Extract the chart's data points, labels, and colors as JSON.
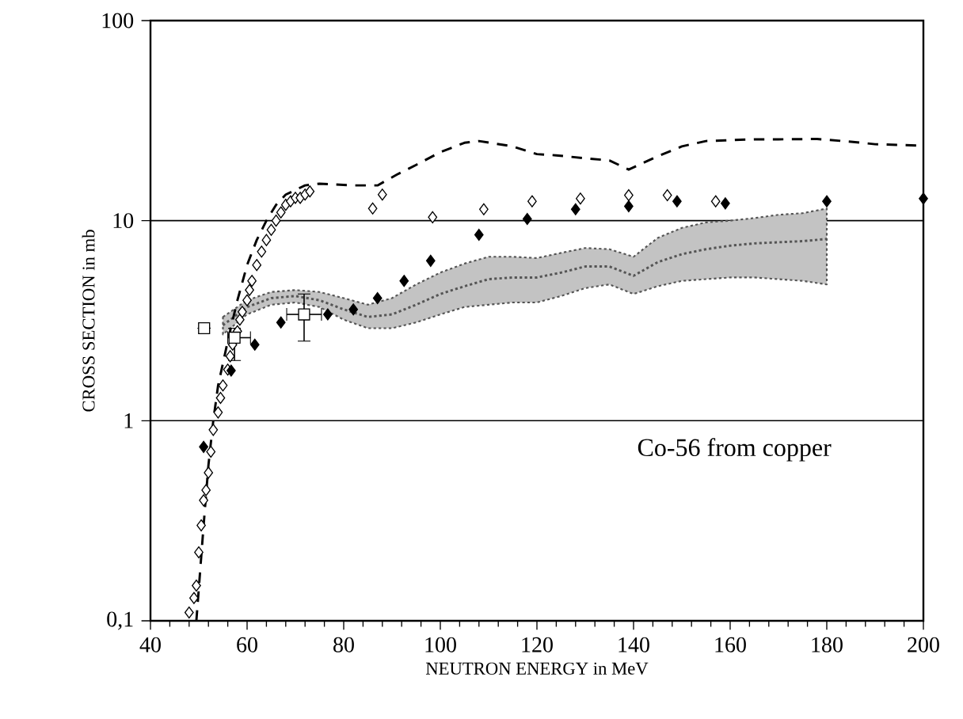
{
  "chart_data": {
    "type": "scatter",
    "xlabel": "NEUTRON ENERGY in MeV",
    "ylabel": "CROSS SECTION in mb",
    "log": "y",
    "grid": "y",
    "xlim": [
      40,
      200
    ],
    "ylim": [
      0.1,
      100
    ],
    "xticks": [
      40,
      60,
      80,
      100,
      120,
      140,
      160,
      180,
      200
    ],
    "yticks": [
      {
        "value": 0.1,
        "label": "0,1"
      },
      1,
      10,
      100
    ],
    "annotations": [
      "Co-56 from copper"
    ],
    "series": [
      {
        "type": "line",
        "color": "#555555",
        "line_style": "dotted",
        "marker": "none",
        "x": [
          55,
          60,
          65,
          70,
          75,
          80,
          85,
          90,
          95,
          100,
          105,
          110,
          115,
          120,
          125,
          130,
          135,
          140,
          145,
          150,
          155,
          160,
          165,
          170,
          175,
          180
        ],
        "values": [
          3.0,
          3.7,
          4.1,
          4.2,
          4.0,
          3.6,
          3.3,
          3.4,
          3.8,
          4.3,
          4.7,
          5.1,
          5.2,
          5.2,
          5.5,
          5.9,
          5.9,
          5.3,
          6.2,
          6.8,
          7.2,
          7.5,
          7.7,
          7.8,
          7.9,
          8.1
        ],
        "lower": [
          2.7,
          3.4,
          3.8,
          3.9,
          3.7,
          3.2,
          2.9,
          2.9,
          3.1,
          3.4,
          3.7,
          3.8,
          3.9,
          3.9,
          4.2,
          4.6,
          4.8,
          4.3,
          4.7,
          5.0,
          5.1,
          5.2,
          5.2,
          5.1,
          5.0,
          4.8
        ],
        "upper": [
          3.3,
          4.0,
          4.4,
          4.5,
          4.4,
          4.1,
          3.8,
          4.1,
          4.8,
          5.5,
          6.1,
          6.6,
          6.6,
          6.5,
          6.9,
          7.3,
          7.2,
          6.6,
          8.2,
          9.2,
          9.8,
          10.0,
          10.3,
          10.7,
          10.9,
          11.5
        ]
      },
      {
        "type": "line",
        "color": "#000000",
        "line_style": "dashed",
        "marker": "none",
        "x": [
          49.5,
          51,
          52,
          53,
          54,
          56,
          58,
          60,
          62,
          64,
          66,
          68,
          72,
          75,
          82,
          87,
          91,
          95,
          100,
          105,
          108,
          115,
          120,
          124,
          130,
          135,
          139,
          145,
          150,
          155,
          159,
          165,
          170,
          178,
          185,
          190,
          200
        ],
        "values": [
          0.1,
          0.3,
          0.6,
          1.0,
          1.5,
          2.5,
          4,
          6,
          8,
          10,
          12,
          13.5,
          15,
          15.3,
          15,
          15,
          17,
          19,
          22,
          24.5,
          25,
          23.5,
          21.5,
          21.2,
          20.5,
          20,
          18,
          21,
          23.5,
          25,
          25.2,
          25.5,
          25.5,
          25.6,
          24.8,
          24.1,
          23.7
        ]
      },
      {
        "color": "#ffffff",
        "marker": "diamond",
        "x": [
          48,
          49,
          49.5,
          50,
          50.5,
          51,
          51.5,
          52,
          52.5,
          53,
          54,
          54.5,
          55,
          56,
          56.5,
          57,
          58,
          58.5,
          59,
          60,
          60.5,
          61,
          62,
          63,
          64,
          65,
          66,
          67,
          68,
          69,
          70,
          71,
          72,
          73,
          86,
          88,
          98.4,
          109,
          119,
          129,
          139,
          147,
          157
        ],
        "values": [
          0.11,
          0.13,
          0.15,
          0.22,
          0.3,
          0.4,
          0.45,
          0.55,
          0.7,
          0.9,
          1.1,
          1.3,
          1.5,
          1.8,
          2.1,
          2.4,
          2.8,
          3.2,
          3.5,
          4,
          4.5,
          5,
          6,
          7,
          8,
          9,
          10,
          11,
          12,
          12.5,
          13,
          13,
          13.5,
          14,
          11.5,
          13.5,
          10.4,
          11.4,
          12.5,
          12.9,
          13.4,
          13.4,
          12.5
        ]
      },
      {
        "color": "#000000",
        "marker": "diamond",
        "x": [
          51,
          56.7,
          61.6,
          67,
          76.7,
          82,
          87,
          92.5,
          98,
          108,
          118,
          128,
          139,
          149,
          159,
          180,
          200
        ],
        "values": [
          0.74,
          1.78,
          2.4,
          3.1,
          3.4,
          3.6,
          4.1,
          5.0,
          6.3,
          8.5,
          10.2,
          11.4,
          11.8,
          12.5,
          12.2,
          12.5,
          12.9
        ]
      },
      {
        "color": "#ffffff",
        "marker": "square",
        "x": [
          51.1,
          57.4,
          71.8
        ],
        "values": [
          2.9,
          2.6,
          3.4
        ],
        "errors": [
          null,
          [
            2.0,
            2.9
          ],
          [
            2.5,
            4.3
          ]
        ],
        "xerrors": [
          null,
          [
            56,
            60.7
          ],
          [
            68.2,
            75.4
          ]
        ]
      }
    ]
  }
}
